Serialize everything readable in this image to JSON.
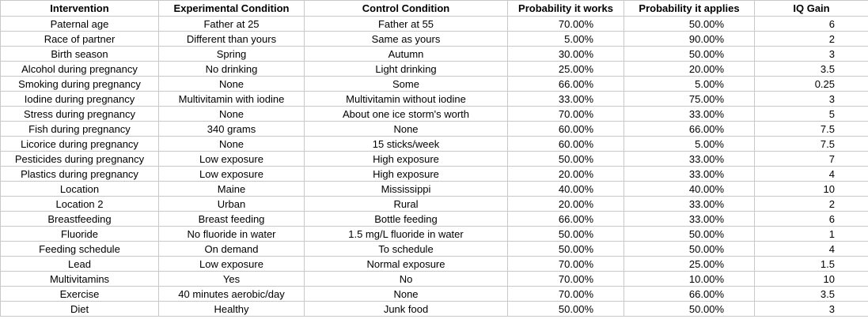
{
  "columns": [
    "Intervention",
    "Experimental Condition",
    "Control Condition",
    "Probability it works",
    "Probability it applies",
    "IQ Gain"
  ],
  "rows": [
    [
      "Paternal age",
      "Father at 25",
      "Father at 55",
      "70.00%",
      "50.00%",
      "6"
    ],
    [
      "Race of partner",
      "Different than yours",
      "Same as yours",
      "5.00%",
      "90.00%",
      "2"
    ],
    [
      "Birth season",
      "Spring",
      "Autumn",
      "30.00%",
      "50.00%",
      "3"
    ],
    [
      "Alcohol during pregnancy",
      "No drinking",
      "Light drinking",
      "25.00%",
      "20.00%",
      "3.5"
    ],
    [
      "Smoking during pregnancy",
      "None",
      "Some",
      "66.00%",
      "5.00%",
      "0.25"
    ],
    [
      "Iodine during pregnancy",
      "Multivitamin with iodine",
      "Multivitamin without iodine",
      "33.00%",
      "75.00%",
      "3"
    ],
    [
      "Stress during pregnancy",
      "None",
      "About one ice storm's worth",
      "70.00%",
      "33.00%",
      "5"
    ],
    [
      "Fish during pregnancy",
      "340 grams",
      "None",
      "60.00%",
      "66.00%",
      "7.5"
    ],
    [
      "Licorice during pregnancy",
      "None",
      "15 sticks/week",
      "60.00%",
      "5.00%",
      "7.5"
    ],
    [
      "Pesticides during pregnancy",
      "Low exposure",
      "High exposure",
      "50.00%",
      "33.00%",
      "7"
    ],
    [
      "Plastics during pregnancy",
      "Low exposure",
      "High exposure",
      "20.00%",
      "33.00%",
      "4"
    ],
    [
      "Location",
      "Maine",
      "Mississippi",
      "40.00%",
      "40.00%",
      "10"
    ],
    [
      "Location 2",
      "Urban",
      "Rural",
      "20.00%",
      "33.00%",
      "2"
    ],
    [
      "Breastfeeding",
      "Breast feeding",
      "Bottle feeding",
      "66.00%",
      "33.00%",
      "6"
    ],
    [
      "Fluoride",
      "No fluoride in water",
      "1.5 mg/L fluoride in water",
      "50.00%",
      "50.00%",
      "1"
    ],
    [
      "Feeding schedule",
      "On demand",
      "To schedule",
      "50.00%",
      "50.00%",
      "4"
    ],
    [
      "Lead",
      "Low exposure",
      "Normal exposure",
      "70.00%",
      "25.00%",
      "1.5"
    ],
    [
      "Multivitamins",
      "Yes",
      "No",
      "70.00%",
      "10.00%",
      "10"
    ],
    [
      "Exercise",
      "40 minutes aerobic/day",
      "None",
      "70.00%",
      "66.00%",
      "3.5"
    ],
    [
      "Diet",
      "Healthy",
      "Junk food",
      "50.00%",
      "50.00%",
      "3"
    ]
  ]
}
